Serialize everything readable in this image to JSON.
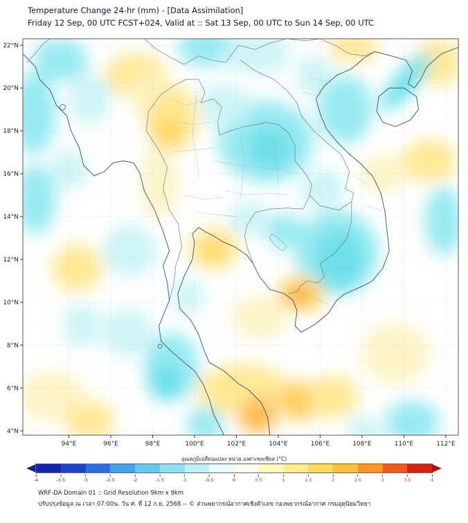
{
  "header": {
    "title": "Temperature Change 24-hr (mm) - [Data Assimilation]",
    "subtitle": "Friday 12 Sep, 00 UTC FCST+024, Valid at :: Sat 13 Sep, 00 UTC to Sun 14 Sep, 00 UTC"
  },
  "map": {
    "lon_range": [
      91.8,
      112.6
    ],
    "lat_range": [
      3.8,
      22.3
    ],
    "x_tick_lons": [
      94,
      96,
      98,
      100,
      102,
      104,
      106,
      108,
      110,
      112
    ],
    "x_tick_labels": [
      "94°E",
      "96°E",
      "98°E",
      "100°E",
      "102°E",
      "104°E",
      "106°E",
      "108°E",
      "110°E",
      "112°E"
    ],
    "y_tick_lats": [
      4,
      6,
      8,
      10,
      12,
      14,
      16,
      18,
      20,
      22
    ],
    "y_tick_labels": [
      "4°N",
      "6°N",
      "8°N",
      "10°N",
      "12°N",
      "14°N",
      "16°N",
      "18°N",
      "20°N",
      "22°N"
    ],
    "anomaly_blobs": [
      {
        "lon": 93.6,
        "lat": 21.3,
        "rx": 1.3,
        "ry": 1.0,
        "rot": 0,
        "color": "#8ce8f0",
        "value": -1.0
      },
      {
        "lon": 92.3,
        "lat": 18.8,
        "rx": 1.1,
        "ry": 1.9,
        "rot": 0,
        "color": "#8ce8f0",
        "value": -1.0
      },
      {
        "lon": 95.0,
        "lat": 19.5,
        "rx": 1.0,
        "ry": 1.2,
        "rot": 0,
        "color": "#c8f3f6",
        "value": -0.5
      },
      {
        "lon": 97.2,
        "lat": 20.6,
        "rx": 1.5,
        "ry": 1.0,
        "rot": 0,
        "color": "#ffe68a",
        "value": 1.0
      },
      {
        "lon": 97.9,
        "lat": 19.6,
        "rx": 1.0,
        "ry": 1.0,
        "rot": 0,
        "color": "#fdf3c0",
        "value": 0.5
      },
      {
        "lon": 98.9,
        "lat": 18.6,
        "rx": 1.3,
        "ry": 1.5,
        "rot": 0,
        "color": "#ffe68a",
        "value": 1.0
      },
      {
        "lon": 98.7,
        "lat": 17.9,
        "rx": 0.7,
        "ry": 0.8,
        "rot": 0,
        "color": "#ffd34d",
        "value": 1.5
      },
      {
        "lon": 100.6,
        "lat": 21.9,
        "rx": 1.4,
        "ry": 0.9,
        "rot": 0,
        "color": "#8ce8f0",
        "value": -1.0
      },
      {
        "lon": 103.0,
        "lat": 21.6,
        "rx": 1.6,
        "ry": 0.9,
        "rot": 0,
        "color": "#c8f3f6",
        "value": -0.5
      },
      {
        "lon": 107.6,
        "lat": 21.9,
        "rx": 1.2,
        "ry": 0.7,
        "rot": 0,
        "color": "#ffe68a",
        "value": 1.0
      },
      {
        "lon": 111.6,
        "lat": 21.2,
        "rx": 1.1,
        "ry": 1.1,
        "rot": 0,
        "color": "#ffe68a",
        "value": 1.0
      },
      {
        "lon": 110.1,
        "lat": 20.3,
        "rx": 0.55,
        "ry": 1.7,
        "rot": 40,
        "color": "#5fdde9",
        "value": -1.5
      },
      {
        "lon": 111.2,
        "lat": 16.6,
        "rx": 1.3,
        "ry": 1.0,
        "rot": 0,
        "color": "#ffe68a",
        "value": 1.0
      },
      {
        "lon": 107.2,
        "lat": 19.0,
        "rx": 1.3,
        "ry": 1.6,
        "rot": 0,
        "color": "#8ce8f0",
        "value": -1.0
      },
      {
        "lon": 105.7,
        "lat": 20.6,
        "rx": 0.9,
        "ry": 0.9,
        "rot": 0,
        "color": "#c8f3f6",
        "value": -0.5
      },
      {
        "lon": 103.4,
        "lat": 17.5,
        "rx": 2.3,
        "ry": 1.9,
        "rot": 0,
        "color": "#8ce8f0",
        "value": -1.0
      },
      {
        "lon": 103.6,
        "lat": 17.2,
        "rx": 1.1,
        "ry": 1.0,
        "rot": 0,
        "color": "#5fdde9",
        "value": -1.5
      },
      {
        "lon": 101.4,
        "lat": 19.2,
        "rx": 1.2,
        "ry": 1.0,
        "rot": 0,
        "color": "#c8f3f6",
        "value": -0.5
      },
      {
        "lon": 98.3,
        "lat": 15.6,
        "rx": 0.9,
        "ry": 1.7,
        "rot": 0,
        "color": "#fdf3c0",
        "value": 0.5
      },
      {
        "lon": 92.4,
        "lat": 14.8,
        "rx": 1.0,
        "ry": 1.6,
        "rot": 0,
        "color": "#8ce8f0",
        "value": -1.0
      },
      {
        "lon": 94.0,
        "lat": 16.2,
        "rx": 0.9,
        "ry": 0.9,
        "rot": 0,
        "color": "#c8f3f6",
        "value": -0.5
      },
      {
        "lon": 94.4,
        "lat": 11.6,
        "rx": 1.2,
        "ry": 1.1,
        "rot": 0,
        "color": "#ffe68a",
        "value": 1.0
      },
      {
        "lon": 96.9,
        "lat": 12.4,
        "rx": 1.3,
        "ry": 1.2,
        "rot": 0,
        "color": "#c8f3f6",
        "value": -0.5
      },
      {
        "lon": 100.9,
        "lat": 12.5,
        "rx": 1.2,
        "ry": 1.0,
        "rot": 0,
        "color": "#ffe68a",
        "value": 1.0
      },
      {
        "lon": 100.9,
        "lat": 12.4,
        "rx": 0.6,
        "ry": 0.5,
        "rot": 0,
        "color": "#ffd34d",
        "value": 1.5
      },
      {
        "lon": 102.6,
        "lat": 13.9,
        "rx": 1.0,
        "ry": 0.8,
        "rot": 0,
        "color": "#c8f3f6",
        "value": -0.5
      },
      {
        "lon": 104.3,
        "lat": 13.3,
        "rx": 0.9,
        "ry": 0.8,
        "rot": 0,
        "color": "#8ce8f0",
        "value": -1.0
      },
      {
        "lon": 106.8,
        "lat": 12.3,
        "rx": 2.0,
        "ry": 2.0,
        "rot": 0,
        "color": "#8ce8f0",
        "value": -1.0
      },
      {
        "lon": 106.9,
        "lat": 12.0,
        "rx": 1.2,
        "ry": 1.4,
        "rot": 0,
        "color": "#5fdde9",
        "value": -1.5
      },
      {
        "lon": 111.9,
        "lat": 13.8,
        "rx": 0.9,
        "ry": 1.6,
        "rot": 0,
        "color": "#8ce8f0",
        "value": -1.0
      },
      {
        "lon": 106.1,
        "lat": 15.3,
        "rx": 1.1,
        "ry": 0.9,
        "rot": 0,
        "color": "#c8f3f6",
        "value": -0.5
      },
      {
        "lon": 109.0,
        "lat": 16.0,
        "rx": 1.0,
        "ry": 0.9,
        "rot": 0,
        "color": "#fdf3c0",
        "value": 0.5
      },
      {
        "lon": 105.1,
        "lat": 10.4,
        "rx": 1.1,
        "ry": 0.8,
        "rot": 0,
        "color": "#ffd34d",
        "value": 1.5
      },
      {
        "lon": 105.0,
        "lat": 10.3,
        "rx": 0.6,
        "ry": 0.5,
        "rot": 0,
        "color": "#ffa53a",
        "value": 2.0
      },
      {
        "lon": 103.1,
        "lat": 9.3,
        "rx": 1.3,
        "ry": 1.0,
        "rot": 0,
        "color": "#fdf3c0",
        "value": 0.5
      },
      {
        "lon": 109.6,
        "lat": 7.6,
        "rx": 1.6,
        "ry": 1.4,
        "rot": 0,
        "color": "#fdf3c0",
        "value": 0.5
      },
      {
        "lon": 98.9,
        "lat": 7.0,
        "rx": 1.3,
        "ry": 1.6,
        "rot": 0,
        "color": "#8ce8f0",
        "value": -1.0
      },
      {
        "lon": 98.6,
        "lat": 6.3,
        "rx": 0.8,
        "ry": 0.9,
        "rot": 0,
        "color": "#5fdde9",
        "value": -1.5
      },
      {
        "lon": 96.8,
        "lat": 8.6,
        "rx": 1.2,
        "ry": 1.1,
        "rot": 0,
        "color": "#c8f3f6",
        "value": -0.5
      },
      {
        "lon": 94.6,
        "lat": 8.9,
        "rx": 0.9,
        "ry": 1.0,
        "rot": 0,
        "color": "#c8f3f6",
        "value": -0.5
      },
      {
        "lon": 99.7,
        "lat": 10.3,
        "rx": 0.8,
        "ry": 0.8,
        "rot": 0,
        "color": "#c8f3f6",
        "value": -0.5
      },
      {
        "lon": 93.2,
        "lat": 5.6,
        "rx": 1.6,
        "ry": 1.2,
        "rot": 0,
        "color": "#fdf3c0",
        "value": 0.5
      },
      {
        "lon": 95.0,
        "lat": 4.5,
        "rx": 1.2,
        "ry": 0.9,
        "rot": 0,
        "color": "#ffe68a",
        "value": 1.0
      },
      {
        "lon": 102.3,
        "lat": 5.9,
        "rx": 2.2,
        "ry": 1.2,
        "rot": 0,
        "color": "#ffe68a",
        "value": 1.0
      },
      {
        "lon": 103.0,
        "lat": 4.7,
        "rx": 0.9,
        "ry": 0.8,
        "rot": 0,
        "color": "#ffb23e",
        "value": 2.0
      },
      {
        "lon": 105.0,
        "lat": 5.4,
        "rx": 1.0,
        "ry": 0.9,
        "rot": 0,
        "color": "#ffc94d",
        "value": 1.5
      },
      {
        "lon": 106.6,
        "lat": 5.6,
        "rx": 1.2,
        "ry": 1.0,
        "rot": 0,
        "color": "#ffe68a",
        "value": 1.0
      },
      {
        "lon": 100.5,
        "lat": 4.3,
        "rx": 0.9,
        "ry": 0.8,
        "rot": 0,
        "color": "#8ce8f0",
        "value": -1.0
      },
      {
        "lon": 110.4,
        "lat": 4.4,
        "rx": 1.3,
        "ry": 1.0,
        "rot": 0,
        "color": "#8ce8f0",
        "value": -1.0
      },
      {
        "lon": 108.1,
        "lat": 4.0,
        "rx": 0.8,
        "ry": 0.7,
        "rot": 0,
        "color": "#c8f3f6",
        "value": -0.5
      }
    ]
  },
  "colorbar": {
    "label": "อุณหภูมิเปลี่ยนแปลง หน่วย องศาเซลเซียส (°C)",
    "left_arrow_color": "#141e8c",
    "right_arrow_color": "#a50f15",
    "segment_colors": [
      "#1527a8",
      "#1e45c8",
      "#2e6fe0",
      "#46a0e8",
      "#63c8ee",
      "#8fe0f2",
      "#bff0f7",
      "#e8fbfd",
      "#fffef0",
      "#fff7c0",
      "#ffec8c",
      "#ffd95c",
      "#ffbe3d",
      "#ff9426",
      "#f05a1e",
      "#d42313"
    ],
    "ticks": [
      "-4",
      "-3.5",
      "-3",
      "-2.5",
      "-2",
      "-1.5",
      "-1",
      "-0.5",
      "0",
      "0.5",
      "1",
      "1.5",
      "2",
      "2.5",
      "3",
      "3.5",
      "4"
    ]
  },
  "footer": {
    "line1": "WRF-DA Domain 01 :: Grid Resolution 9km x 9km",
    "line2": "ปรับปรุงข้อมูล ณ เวลา 07:00น. วัน ศ. ที่ 12 ก.ย. 2568 -- © ส่วนพยากรณ์อากาศเชิงตัวเลข กองพยากรณ์อากาศ กรมอุตุนิยมวิทยา"
  }
}
